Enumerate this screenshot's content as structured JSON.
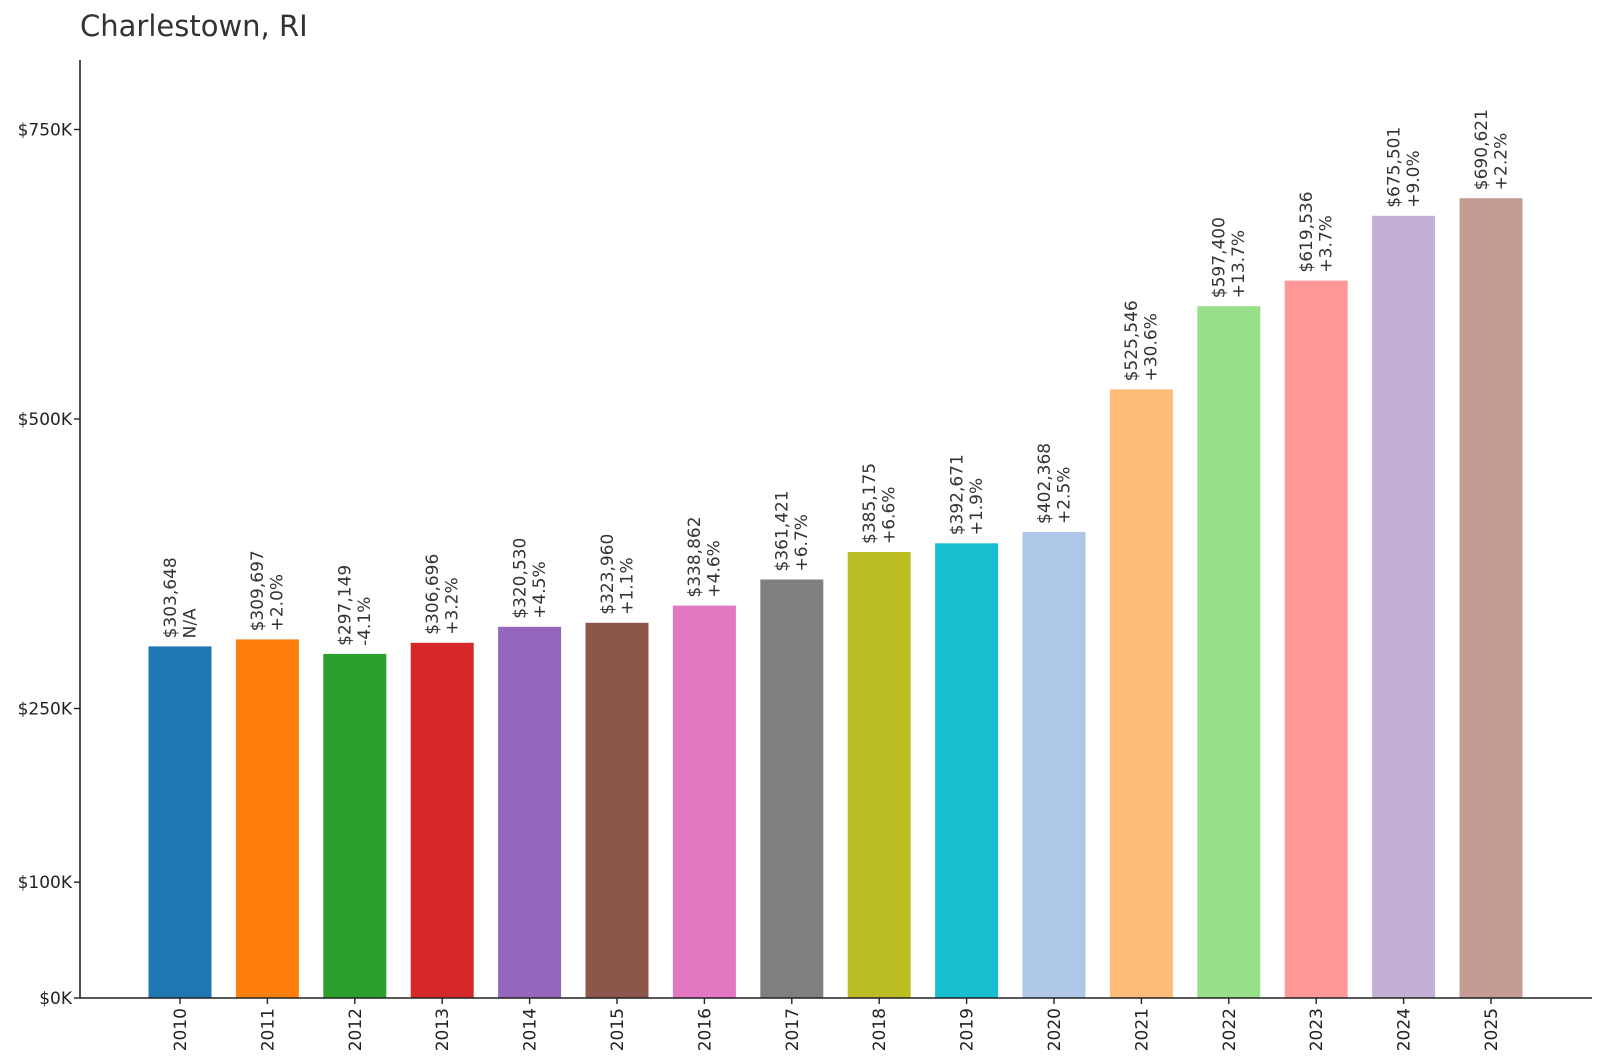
{
  "chart_data": {
    "type": "bar",
    "title": "Charlestown, RI",
    "xlabel": "",
    "ylabel": "",
    "categories": [
      "2010",
      "2011",
      "2012",
      "2013",
      "2014",
      "2015",
      "2016",
      "2017",
      "2018",
      "2019",
      "2020",
      "2021",
      "2022",
      "2023",
      "2024",
      "2025"
    ],
    "values": [
      303648,
      309697,
      297149,
      306696,
      320530,
      323960,
      338862,
      361421,
      385175,
      392671,
      402368,
      525546,
      597400,
      619536,
      675501,
      690621
    ],
    "value_labels": [
      "$303,648",
      "$309,697",
      "$297,149",
      "$306,696",
      "$320,530",
      "$323,960",
      "$338,862",
      "$361,421",
      "$385,175",
      "$392,671",
      "$402,368",
      "$525,546",
      "$597,400",
      "$619,536",
      "$675,501",
      "$690,621"
    ],
    "change_labels": [
      "N/A",
      "+2.0%",
      "-4.1%",
      "+3.2%",
      "+4.5%",
      "+1.1%",
      "+4.6%",
      "+6.7%",
      "+6.6%",
      "+1.9%",
      "+2.5%",
      "+30.6%",
      "+13.7%",
      "+3.7%",
      "+9.0%",
      "+2.2%"
    ],
    "colors": [
      "#1f77b4",
      "#ff7f0e",
      "#2ca02c",
      "#d62728",
      "#9467bd",
      "#8c564b",
      "#e377c2",
      "#7f7f7f",
      "#bcbd22",
      "#17becf",
      "#aec7e8",
      "#ffbb78",
      "#98df8a",
      "#ff9896",
      "#c5b0d5",
      "#c49c94"
    ],
    "yticks": [
      0,
      100000,
      250000,
      500000,
      750000
    ],
    "ytick_labels": [
      "$0K",
      "$100K",
      "$250K",
      "$500K",
      "$750K"
    ],
    "ylim": [
      0,
      810000
    ],
    "grid": false,
    "legend": "none"
  }
}
